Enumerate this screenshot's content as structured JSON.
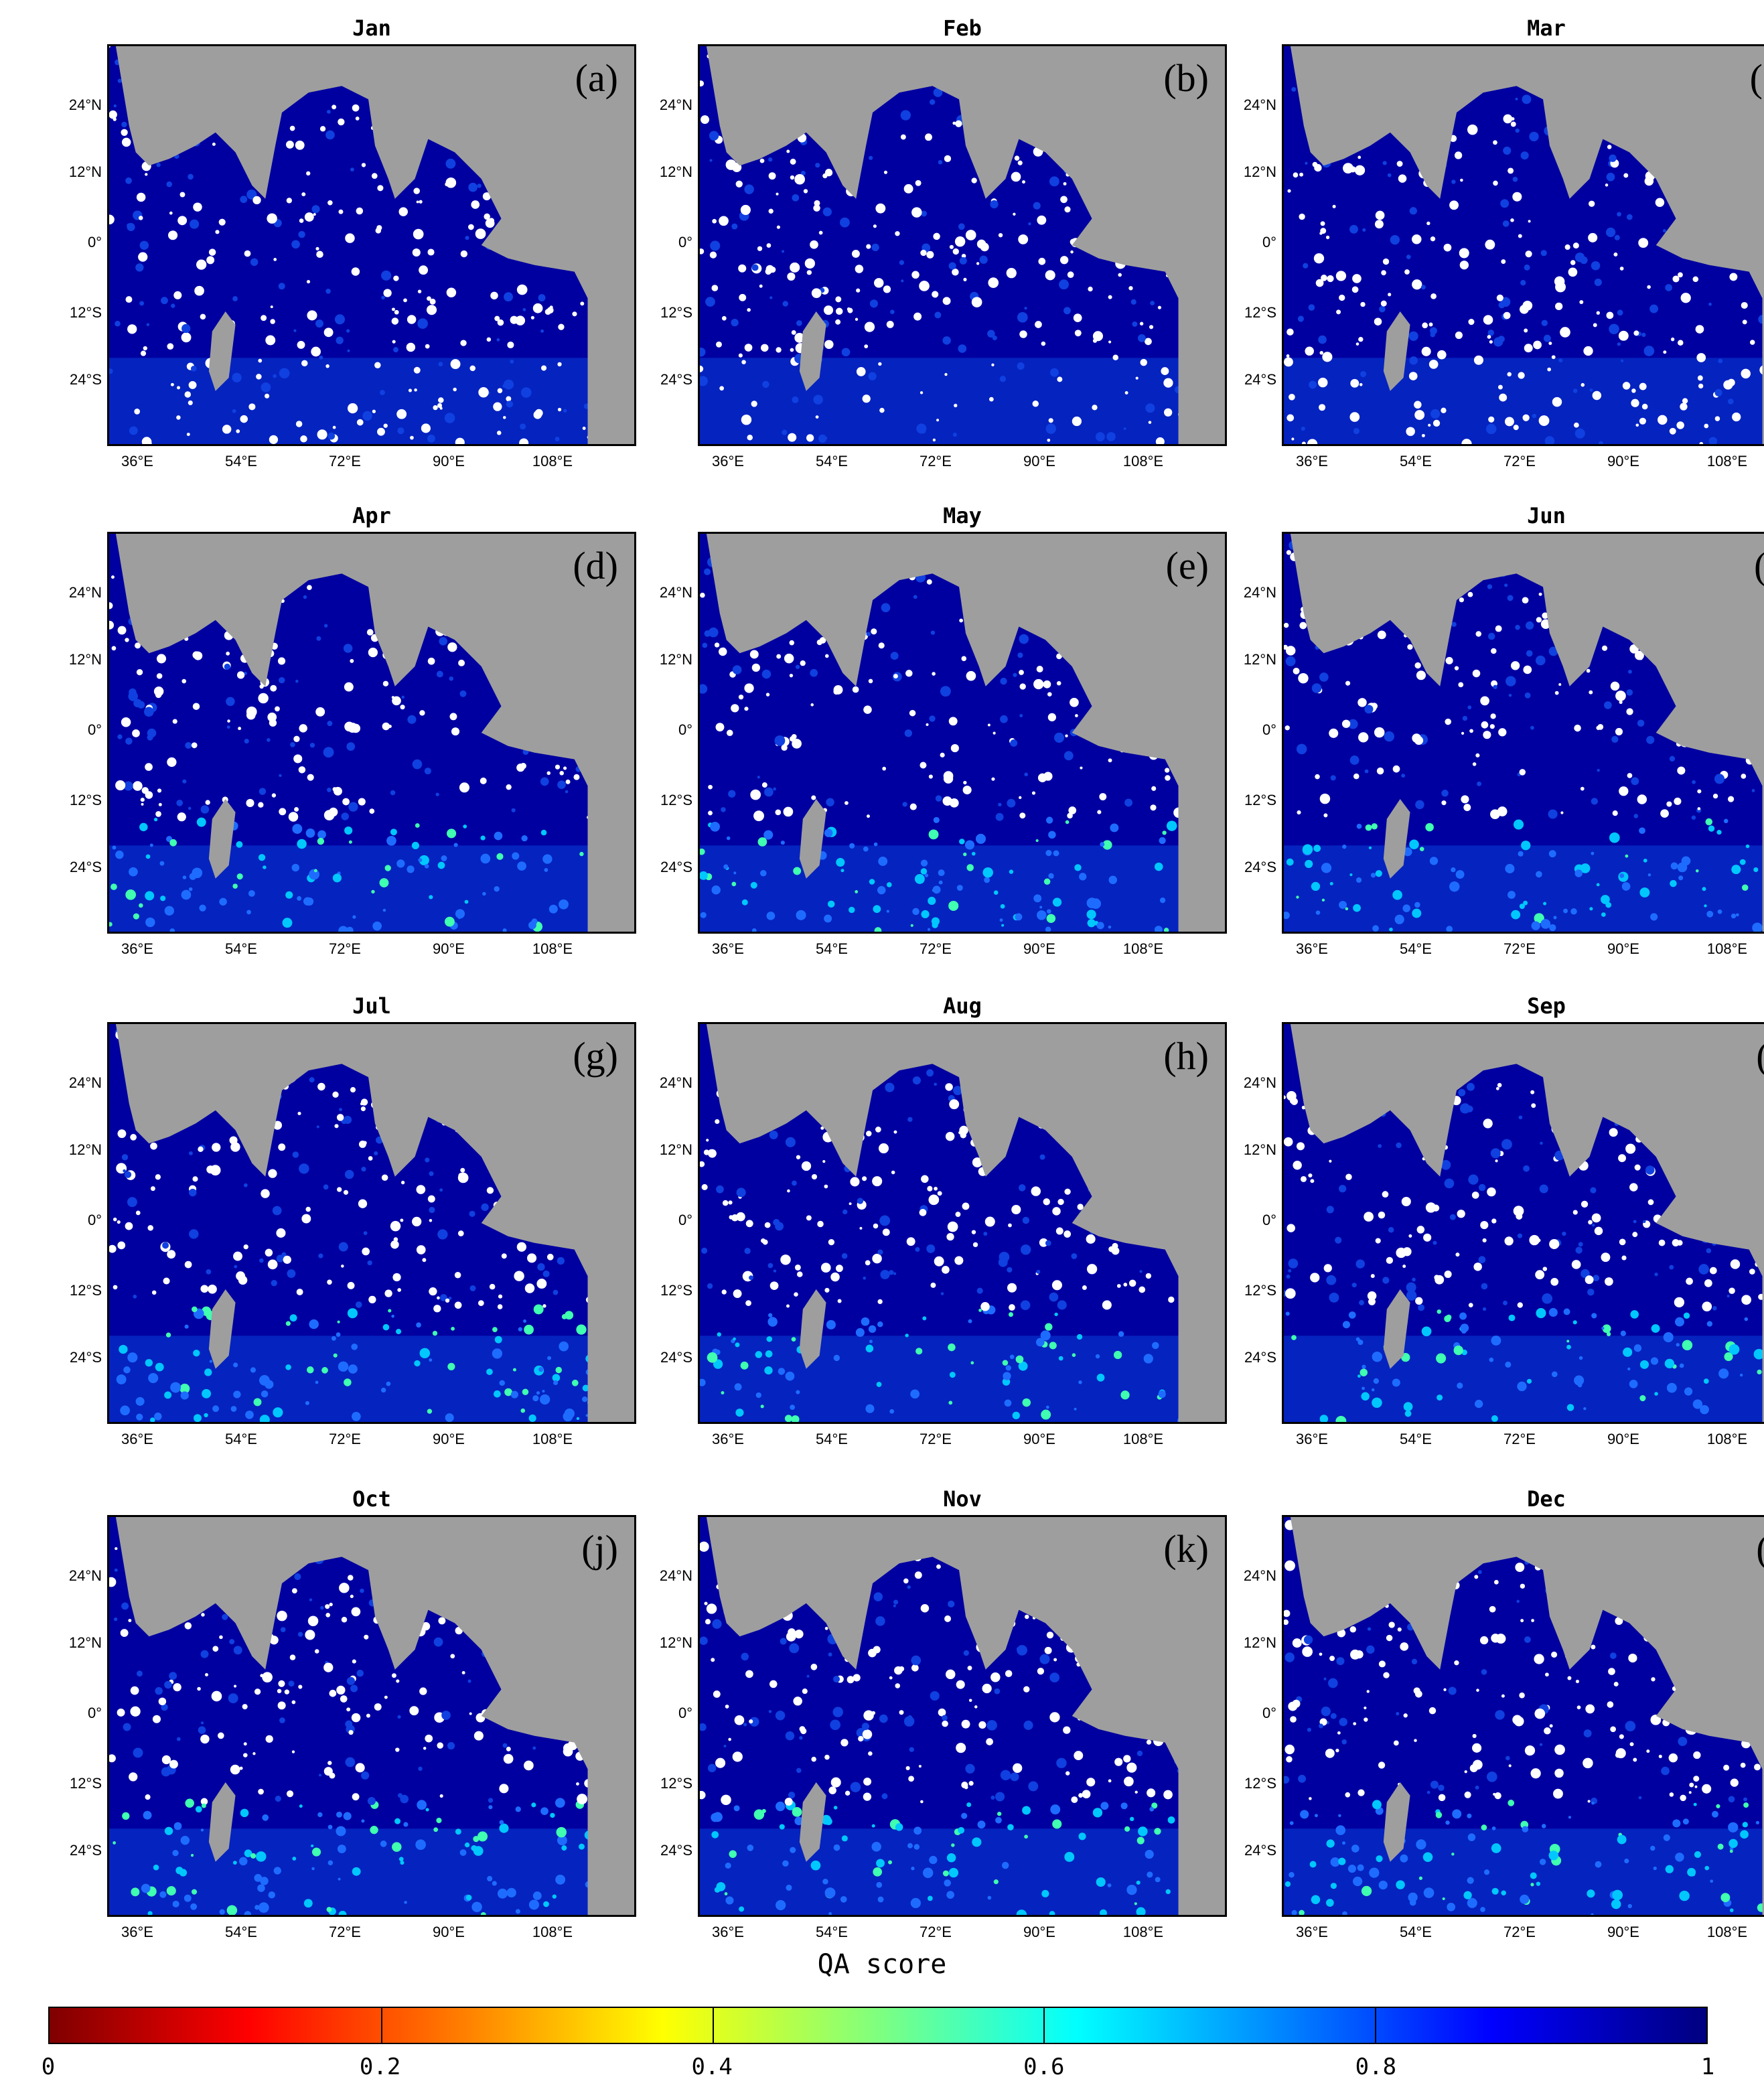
{
  "panels": [
    {
      "month": "Jan",
      "letter": "(a)"
    },
    {
      "month": "Feb",
      "letter": "(b)"
    },
    {
      "month": "Mar",
      "letter": "(c)"
    },
    {
      "month": "Apr",
      "letter": "(d)"
    },
    {
      "month": "May",
      "letter": "(e)"
    },
    {
      "month": "Jun",
      "letter": "(f)"
    },
    {
      "month": "Jul",
      "letter": "(g)"
    },
    {
      "month": "Aug",
      "letter": "(h)"
    },
    {
      "month": "Sep",
      "letter": "(i)"
    },
    {
      "month": "Oct",
      "letter": "(j)"
    },
    {
      "month": "Nov",
      "letter": "(k)"
    },
    {
      "month": "Dec",
      "letter": "(l)"
    }
  ],
  "lat_labels": [
    "24°N",
    "12°N",
    "0°",
    "12°S",
    "24°S"
  ],
  "lon_labels": [
    "36°E",
    "54°E",
    "72°E",
    "90°E",
    "108°E"
  ],
  "colorbar": {
    "title": "QA score",
    "tick_labels": [
      "0",
      "0.2",
      "0.4",
      "0.6",
      "0.8",
      "1"
    ],
    "range": [
      0,
      1
    ]
  },
  "colors": {
    "land": "#9e9e9e",
    "ocean_high_qa": "#0000a0",
    "no_data": "#ffffff"
  }
}
